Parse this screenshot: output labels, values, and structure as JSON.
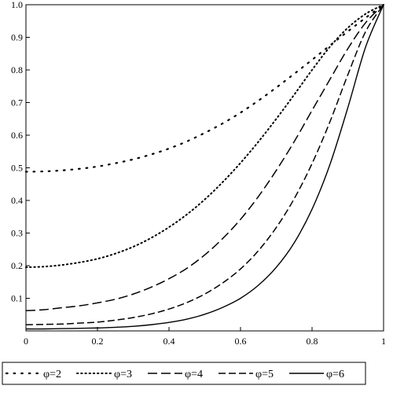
{
  "chart_data": {
    "type": "line",
    "title": "",
    "xlabel": "",
    "ylabel": "",
    "xlim": [
      0,
      1
    ],
    "ylim": [
      0,
      1
    ],
    "grid": false,
    "legend_position": "bottom",
    "x_ticks": [
      "0",
      "0.2",
      "0.4",
      "0.6",
      "0.8",
      "1"
    ],
    "y_ticks": [
      "0.1",
      "0.2",
      "0.3",
      "0.4",
      "0.5",
      "0.6",
      "0.7",
      "0.8",
      "0.9",
      "1.0"
    ],
    "x": [
      0,
      0.05,
      0.1,
      0.15,
      0.2,
      0.25,
      0.3,
      0.35,
      0.4,
      0.45,
      0.5,
      0.55,
      0.6,
      0.65,
      0.7,
      0.75,
      0.8,
      0.85,
      0.9,
      0.95,
      1.0
    ],
    "series": [
      {
        "name": "φ=2",
        "style": "sparse-dots",
        "values": [
          0.488,
          0.489,
          0.492,
          0.497,
          0.504,
          0.514,
          0.526,
          0.541,
          0.559,
          0.581,
          0.607,
          0.636,
          0.669,
          0.706,
          0.746,
          0.788,
          0.831,
          0.875,
          0.918,
          0.96,
          1.0
        ]
      },
      {
        "name": "φ=3",
        "style": "dotted",
        "values": [
          0.195,
          0.197,
          0.202,
          0.21,
          0.221,
          0.237,
          0.258,
          0.285,
          0.318,
          0.357,
          0.403,
          0.456,
          0.515,
          0.58,
          0.65,
          0.724,
          0.8,
          0.871,
          0.929,
          0.972,
          1.0
        ]
      },
      {
        "name": "φ=4",
        "style": "long-dash",
        "values": [
          0.062,
          0.065,
          0.071,
          0.077,
          0.086,
          0.097,
          0.113,
          0.134,
          0.16,
          0.192,
          0.233,
          0.283,
          0.342,
          0.412,
          0.492,
          0.58,
          0.676,
          0.771,
          0.865,
          0.945,
          1.0
        ]
      },
      {
        "name": "φ=5",
        "style": "dash",
        "values": [
          0.019,
          0.02,
          0.021,
          0.024,
          0.027,
          0.033,
          0.041,
          0.052,
          0.067,
          0.087,
          0.113,
          0.147,
          0.19,
          0.246,
          0.317,
          0.405,
          0.513,
          0.641,
          0.785,
          0.918,
          1.0
        ]
      },
      {
        "name": "φ=6",
        "style": "solid",
        "values": [
          0.006,
          0.006,
          0.007,
          0.008,
          0.009,
          0.011,
          0.014,
          0.019,
          0.026,
          0.036,
          0.051,
          0.072,
          0.1,
          0.14,
          0.195,
          0.27,
          0.373,
          0.51,
          0.684,
          0.871,
          1.0
        ]
      }
    ]
  }
}
